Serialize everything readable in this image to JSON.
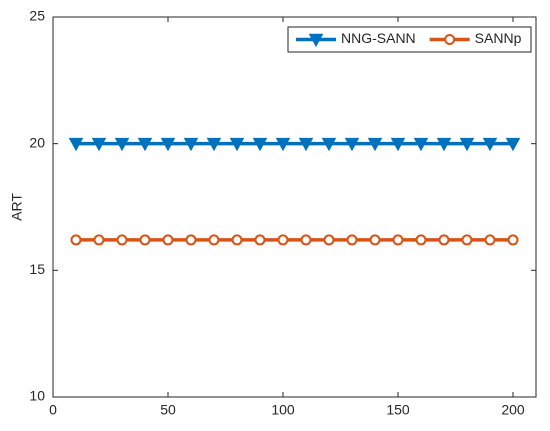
{
  "chart_data": {
    "type": "line",
    "y_label": "ART",
    "x": [
      10,
      20,
      30,
      40,
      50,
      60,
      70,
      80,
      90,
      100,
      110,
      120,
      130,
      140,
      150,
      160,
      170,
      180,
      190,
      200
    ],
    "series": [
      {
        "name": "NNG-SANN",
        "color": "#0072BD",
        "marker": "triangle-down",
        "values": [
          20,
          20,
          20,
          20,
          20,
          20,
          20,
          20,
          20,
          20,
          20,
          20,
          20,
          20,
          20,
          20,
          20,
          20,
          20,
          20
        ]
      },
      {
        "name": "SANNp",
        "color": "#D95319",
        "marker": "circle",
        "values": [
          16.2,
          16.2,
          16.2,
          16.2,
          16.2,
          16.2,
          16.2,
          16.2,
          16.2,
          16.2,
          16.2,
          16.2,
          16.2,
          16.2,
          16.2,
          16.2,
          16.2,
          16.2,
          16.2,
          16.2
        ]
      }
    ],
    "xlim": [
      0,
      210
    ],
    "xticks": [
      0,
      50,
      100,
      150,
      200
    ],
    "ylim": [
      10,
      25
    ],
    "yticks": [
      10,
      15,
      20,
      25
    ],
    "legend": "top-right"
  }
}
